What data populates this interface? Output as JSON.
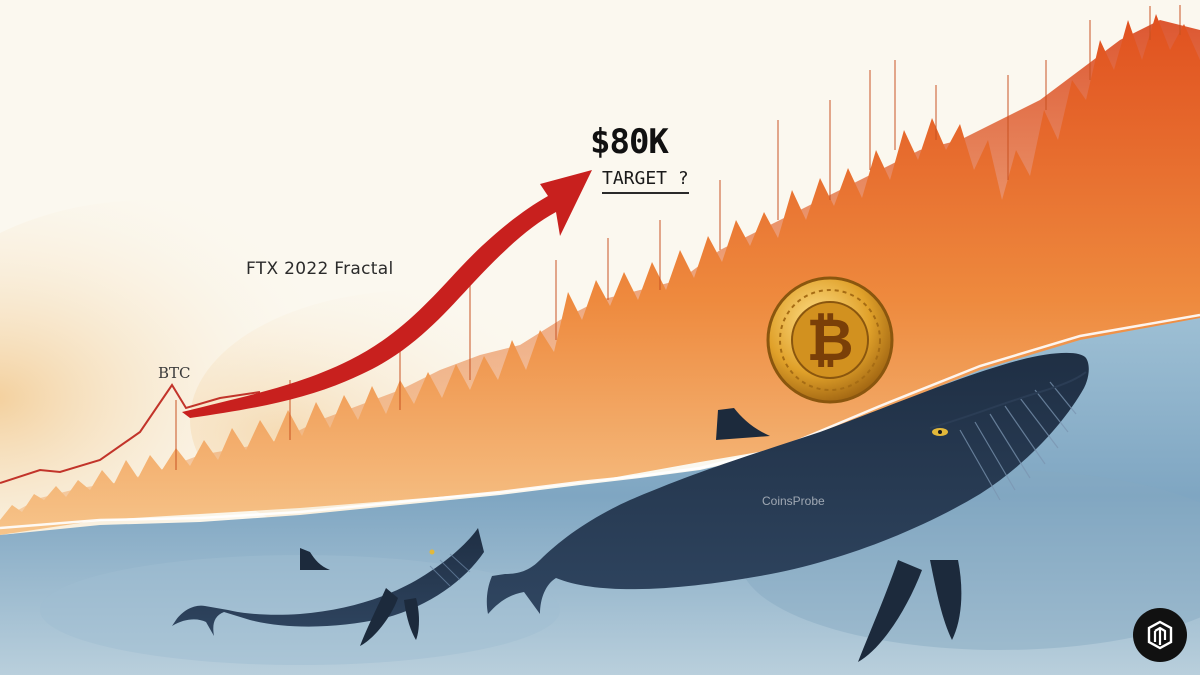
{
  "labels": {
    "btc": "BTC",
    "fractal": "FTX 2022 Fractal",
    "price_target": "$80K",
    "target_text": "TARGET ?",
    "watermark": "CoinsProbe"
  },
  "icons": {
    "coin": "bitcoin-coin-icon",
    "badge": "coinsprobe-logo-icon",
    "arrow": "red-up-arrow"
  },
  "colors": {
    "background": "#fbf8ef",
    "chart_orange": "#e4632a",
    "arrow_red": "#c8201e",
    "whale": "#24344a",
    "water": "#7ea4bf",
    "coin_gold": "#d79a22"
  }
}
